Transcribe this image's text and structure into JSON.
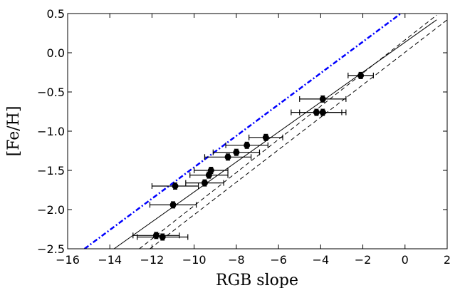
{
  "chart_data": {
    "type": "scatter",
    "xlabel": "RGB slope",
    "ylabel": "[Fe/H]",
    "xlim": [
      -16,
      2
    ],
    "ylim": [
      -2.5,
      0.5
    ],
    "xticks": [
      -16,
      -14,
      -12,
      -10,
      -8,
      -6,
      -4,
      -2,
      0,
      2
    ],
    "xtick_labels": [
      "−16",
      "−14",
      "−12",
      "−10",
      "−8",
      "−6",
      "−4",
      "−2",
      "0",
      "2"
    ],
    "yticks": [
      -2.5,
      -2.0,
      -1.5,
      -1.0,
      -0.5,
      0.0,
      0.5
    ],
    "ytick_labels": [
      "−2.5",
      "−2.0",
      "−1.5",
      "−1.0",
      "−0.5",
      "0.0",
      "0.5"
    ],
    "grid": false,
    "points": [
      {
        "x": -2.1,
        "y": -0.29,
        "xerr": 0.6,
        "yerr": 0.04
      },
      {
        "x": -3.9,
        "y": -0.59,
        "xerr": 1.1,
        "yerr": 0.04
      },
      {
        "x": -4.2,
        "y": -0.76,
        "xerr": 1.2,
        "yerr": 0.04
      },
      {
        "x": -3.9,
        "y": -0.76,
        "xerr": 1.1,
        "yerr": 0.04
      },
      {
        "x": -6.6,
        "y": -1.08,
        "xerr": 0.8,
        "yerr": 0.04
      },
      {
        "x": -7.5,
        "y": -1.18,
        "xerr": 1.0,
        "yerr": 0.04
      },
      {
        "x": -8.0,
        "y": -1.27,
        "xerr": 1.1,
        "yerr": 0.04
      },
      {
        "x": -8.4,
        "y": -1.33,
        "xerr": 1.1,
        "yerr": 0.04
      },
      {
        "x": -9.2,
        "y": -1.5,
        "xerr": 0.8,
        "yerr": 0.04
      },
      {
        "x": -9.3,
        "y": -1.56,
        "xerr": 0.9,
        "yerr": 0.04
      },
      {
        "x": -9.5,
        "y": -1.66,
        "xerr": 0.9,
        "yerr": 0.04
      },
      {
        "x": -10.9,
        "y": -1.7,
        "xerr": 1.1,
        "yerr": 0.04
      },
      {
        "x": -11.0,
        "y": -1.94,
        "xerr": 1.1,
        "yerr": 0.04
      },
      {
        "x": -11.8,
        "y": -2.33,
        "xerr": 1.1,
        "yerr": 0.04
      },
      {
        "x": -11.5,
        "y": -2.35,
        "xerr": 1.2,
        "yerr": 0.04
      }
    ],
    "lines": [
      {
        "style": "solid",
        "color": "#000000",
        "x": [
          -13.8,
          1.5
        ],
        "y": [
          -2.5,
          0.42
        ]
      },
      {
        "style": "dashed",
        "color": "#000000",
        "x": [
          -12.1,
          2.0
        ],
        "y": [
          -2.5,
          0.42
        ]
      },
      {
        "style": "dashed",
        "color": "#000000",
        "x": [
          -12.6,
          1.5
        ],
        "y": [
          -2.5,
          0.48
        ]
      },
      {
        "style": "dashdot",
        "color": "#0000ff",
        "x": [
          -15.2,
          -0.2
        ],
        "y": [
          -2.5,
          0.5
        ]
      }
    ]
  }
}
